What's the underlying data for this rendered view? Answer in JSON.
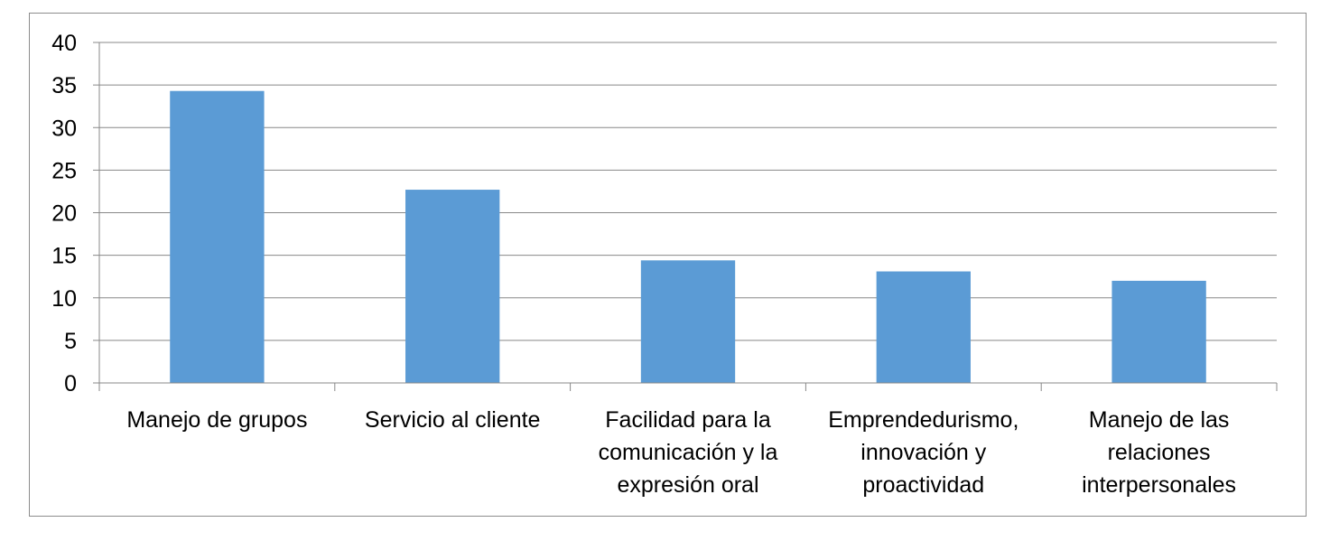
{
  "chart_data": {
    "type": "bar",
    "categories": [
      "Manejo de grupos",
      "Servicio al cliente",
      "Facilidad para la comunicación y la expresión oral",
      "Emprendedurismo, innovación y proactividad",
      "Manejo de las relaciones interpersonales"
    ],
    "category_lines": [
      [
        "Manejo de grupos"
      ],
      [
        "Servicio al cliente"
      ],
      [
        "Facilidad para la",
        "comunicación y la",
        "expresión oral"
      ],
      [
        "Emprendedurismo,",
        "innovación y",
        "proactividad"
      ],
      [
        "Manejo de las",
        "relaciones",
        "interpersonales"
      ]
    ],
    "values": [
      34.3,
      22.7,
      14.4,
      13.1,
      12.0
    ],
    "ylim": [
      0,
      40
    ],
    "yticks": [
      0,
      5,
      10,
      15,
      20,
      25,
      30,
      35,
      40
    ],
    "grid": true,
    "legend": "none",
    "bar_color": "#5b9bd5",
    "grid_color": "#888888",
    "title": "",
    "xlabel": "",
    "ylabel": ""
  }
}
